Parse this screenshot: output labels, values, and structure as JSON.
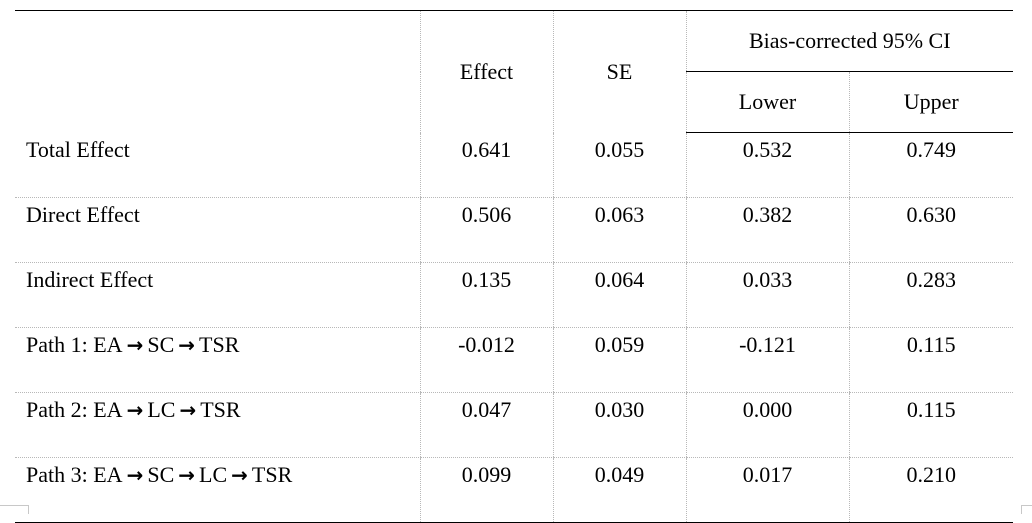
{
  "table": {
    "headers": {
      "effect": "Effect",
      "se": "SE",
      "ci_group": "Bias-corrected 95% CI",
      "lower": "Lower",
      "upper": "Upper"
    },
    "rows": [
      {
        "label": "Total Effect",
        "effect": "0.641",
        "se": "0.055",
        "lower": "0.532",
        "upper": "0.749"
      },
      {
        "label": "Direct Effect",
        "effect": "0.506",
        "se": "0.063",
        "lower": "0.382",
        "upper": "0.630"
      },
      {
        "label": "Indirect Effect",
        "effect": "0.135",
        "se": "0.064",
        "lower": "0.033",
        "upper": "0.283"
      },
      {
        "label": "Path 1: EA",
        "path": [
          "SC",
          "TSR"
        ],
        "effect": "-0.012",
        "se": "0.059",
        "lower": "-0.121",
        "upper": "0.115"
      },
      {
        "label": "Path 2: EA",
        "path": [
          "LC",
          "TSR"
        ],
        "effect": "0.047",
        "se": "0.030",
        "lower": "0.000",
        "upper": "0.115"
      },
      {
        "label": "Path 3: EA",
        "path": [
          "SC",
          "LC",
          "TSR"
        ],
        "effect": "0.099",
        "se": "0.049",
        "lower": "0.017",
        "upper": "0.210"
      }
    ],
    "arrow_glyph": "→"
  }
}
